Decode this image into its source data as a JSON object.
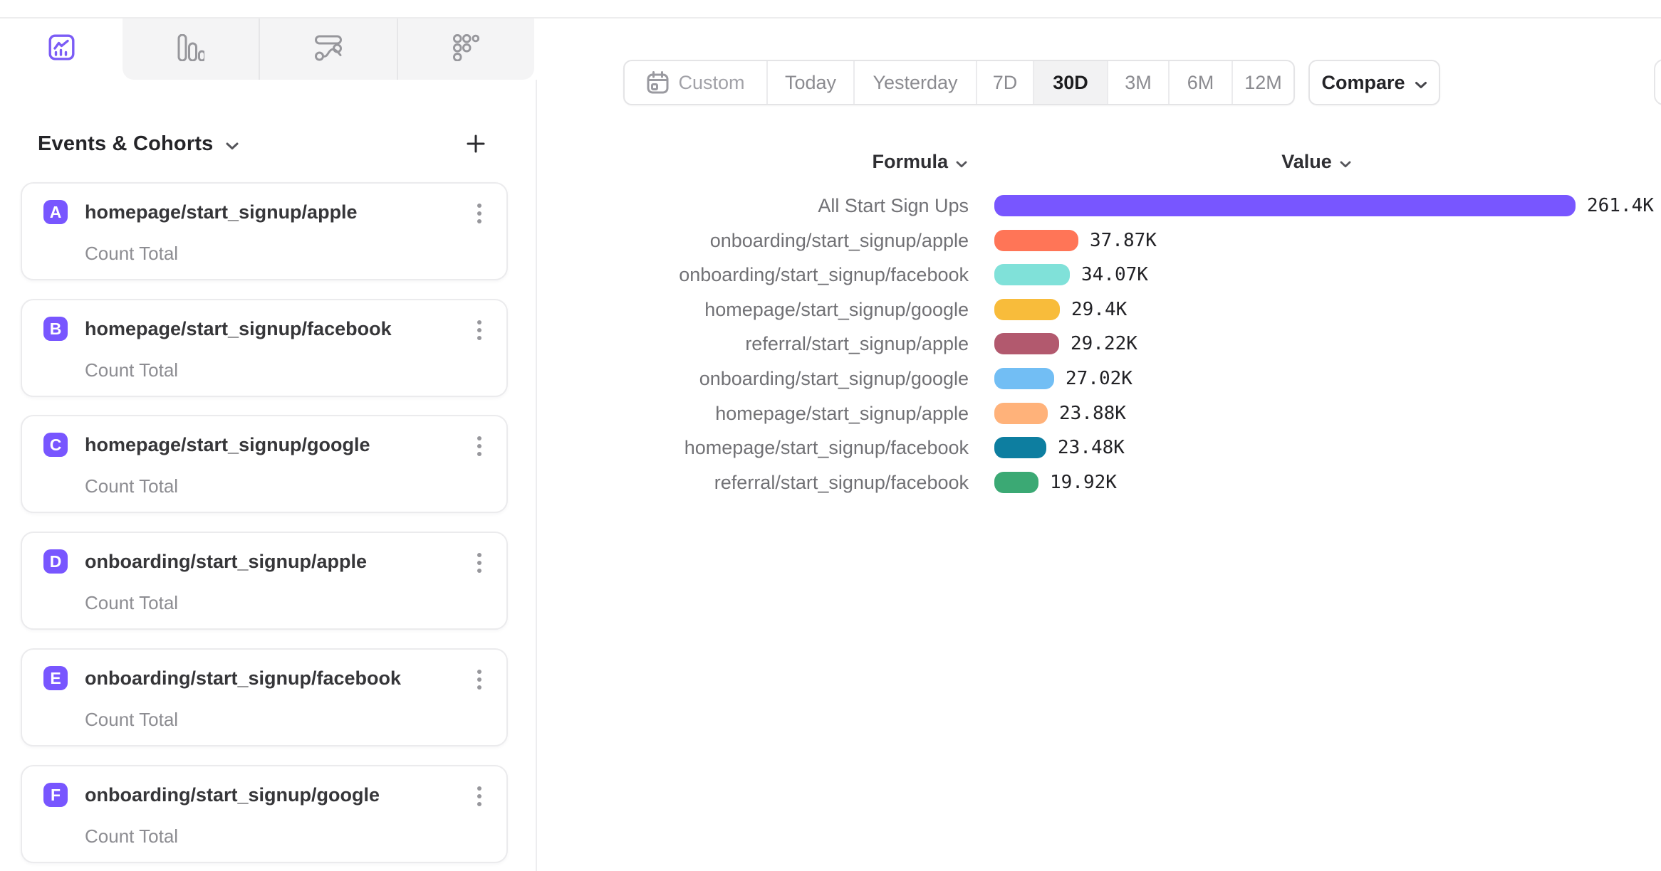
{
  "header": {
    "tabs": [
      {
        "name": "insights",
        "active": true
      },
      {
        "name": "bar-report",
        "active": false
      },
      {
        "name": "flows",
        "active": false
      },
      {
        "name": "retention",
        "active": false
      }
    ]
  },
  "sidebar": {
    "title": "Events & Cohorts",
    "add_button": "+",
    "badge_color": "#7856FF",
    "cards": [
      {
        "letter": "A",
        "title": "homepage/start_signup/apple",
        "subtitle": "Count Total"
      },
      {
        "letter": "B",
        "title": "homepage/start_signup/facebook",
        "subtitle": "Count Total"
      },
      {
        "letter": "C",
        "title": "homepage/start_signup/google",
        "subtitle": "Count Total"
      },
      {
        "letter": "D",
        "title": "onboarding/start_signup/apple",
        "subtitle": "Count Total"
      },
      {
        "letter": "E",
        "title": "onboarding/start_signup/facebook",
        "subtitle": "Count Total"
      },
      {
        "letter": "F",
        "title": "onboarding/start_signup/google",
        "subtitle": "Count Total"
      }
    ]
  },
  "toolbar": {
    "ranges": [
      "Custom",
      "Today",
      "Yesterday",
      "7D",
      "30D",
      "3M",
      "6M",
      "12M"
    ],
    "active_range": "30D",
    "compare_label": "Compare"
  },
  "chart_data": {
    "type": "bar",
    "orientation": "horizontal",
    "headers": {
      "formula": "Formula",
      "value": "Value"
    },
    "categories": [
      "All Start Sign Ups",
      "onboarding/start_signup/apple",
      "onboarding/start_signup/facebook",
      "homepage/start_signup/google",
      "referral/start_signup/apple",
      "onboarding/start_signup/google",
      "homepage/start_signup/apple",
      "homepage/start_signup/facebook",
      "referral/start_signup/facebook"
    ],
    "values_thousands": [
      261.4,
      37.87,
      34.07,
      29.4,
      29.22,
      27.02,
      23.88,
      23.48,
      19.92
    ],
    "value_labels": [
      "261.4K",
      "37.87K",
      "34.07K",
      "29.4K",
      "29.22K",
      "27.02K",
      "23.88K",
      "23.48K",
      "19.92K"
    ],
    "colors": [
      "#7856FF",
      "#FF7557",
      "#80E1D9",
      "#F8BC3B",
      "#B2596E",
      "#72BEF4",
      "#FFB27A",
      "#0D7EA0",
      "#3BA974"
    ],
    "xmax_thousands": 261.4,
    "grid": false,
    "legend": false
  }
}
